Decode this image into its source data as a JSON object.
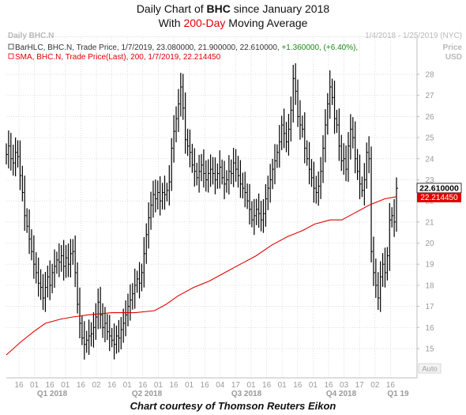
{
  "title": {
    "prefix": "Daily Chart of ",
    "ticker": "BHC",
    "suffix": " since January 2018",
    "line2_prefix": "With ",
    "sma_label": "200-Day",
    "line2_suffix": " Moving Average"
  },
  "panel": {
    "name": "Daily BHC.N",
    "date_range": "1/4/2018 - 1/25/2019 (NYC)",
    "price_label": "Price",
    "currency": "USD",
    "auto_label": "Auto"
  },
  "legend": {
    "bar_text": "BarHLC, BHC.N, Trade Price, 1/7/2019, 23.080000, 21.900000, 22.610000, ",
    "bar_change": "+1.360000, (+6.40%),",
    "sma_text": "SMA, BHC.N, Trade Price(Last),  200,  1/7/2019, 22.214450"
  },
  "colors": {
    "bars": "#000000",
    "sma": "#e00000",
    "change": "#1a8a1a",
    "grid": "#cfcfcf",
    "last_price_bg": "#ffffff",
    "sma_label_bg": "#e00000"
  },
  "footer": "Chart courtesy of Thomson Reuters Eikon",
  "chart_data": {
    "type": "line",
    "chart_kind": "OHLC daily price bars (high-low-close) with 200-day simple moving average",
    "x_tick_labels": [
      "16",
      "01",
      "16",
      "01",
      "16",
      "02",
      "16",
      "01",
      "16",
      "01",
      "16",
      "01",
      "16",
      "04",
      "17",
      "01",
      "16",
      "01",
      "16",
      "01",
      "16",
      "03",
      "17",
      "02",
      "16"
    ],
    "quarter_labels": [
      "Q1 2018",
      "Q2 2018",
      "Q3 2018",
      "Q4 2018",
      "Q1 19"
    ],
    "ylim": [
      14,
      29
    ],
    "y_ticks": [
      15,
      16,
      17,
      18,
      19,
      20,
      21,
      22,
      23,
      24,
      25,
      26,
      27,
      28
    ],
    "last_price": "22.610000",
    "sma_last": "22.214450",
    "close_series": [
      24.2,
      24.6,
      24.0,
      23.8,
      24.3,
      24.1,
      23.2,
      22.4,
      21.3,
      20.8,
      20.2,
      19.6,
      19.0,
      18.6,
      18.1,
      17.9,
      17.4,
      17.9,
      18.4,
      18.0,
      18.6,
      18.9,
      19.2,
      19.1,
      19.4,
      18.9,
      19.3,
      19.0,
      19.5,
      19.6,
      18.6,
      17.1,
      16.2,
      15.5,
      15.2,
      15.4,
      15.6,
      15.7,
      16.0,
      16.5,
      17.2,
      16.6,
      16.0,
      16.2,
      15.8,
      15.6,
      15.4,
      15.2,
      15.6,
      15.5,
      15.9,
      16.2,
      16.6,
      17.0,
      17.3,
      17.6,
      18.0,
      18.3,
      18.1,
      18.6,
      19.5,
      20.4,
      21.2,
      21.8,
      22.3,
      22.1,
      22.4,
      22.0,
      22.4,
      22.3,
      22.5,
      22.9,
      24.5,
      25.3,
      25.9,
      26.6,
      27.4,
      26.4,
      24.9,
      24.6,
      24.3,
      23.7,
      23.4,
      23.1,
      23.4,
      23.7,
      23.3,
      23.0,
      23.3,
      23.5,
      23.3,
      23.0,
      23.3,
      23.6,
      23.1,
      22.8,
      23.0,
      23.4,
      23.3,
      23.8,
      23.5,
      23.2,
      22.8,
      22.6,
      22.4,
      22.0,
      21.6,
      21.1,
      21.3,
      21.6,
      21.4,
      21.1,
      21.4,
      22.1,
      22.6,
      23.0,
      23.5,
      23.9,
      24.3,
      24.8,
      25.6,
      25.2,
      24.8,
      25.4,
      26.3,
      27.8,
      27.2,
      26.0,
      25.6,
      25.4,
      24.5,
      24.0,
      23.5,
      23.1,
      22.6,
      22.4,
      22.7,
      23.4,
      24.5,
      25.6,
      26.6,
      27.4,
      26.9,
      25.9,
      25.6,
      24.6,
      23.9,
      24.0,
      23.5,
      24.6,
      25.4,
      25.0,
      24.0,
      23.4,
      22.8,
      22.5,
      23.0,
      24.3,
      24.0,
      19.6,
      18.6,
      18.0,
      17.4,
      18.4,
      19.0,
      18.6,
      19.4,
      21.1,
      21.3,
      21.0,
      22.6
    ],
    "sma_series": [
      [
        0,
        14.7
      ],
      [
        18,
        15.3
      ],
      [
        35,
        15.8
      ],
      [
        50,
        16.2
      ],
      [
        70,
        16.4
      ],
      [
        85,
        16.5
      ],
      [
        105,
        16.6
      ],
      [
        135,
        16.7
      ],
      [
        165,
        16.7
      ],
      [
        190,
        16.8
      ],
      [
        205,
        17.1
      ],
      [
        220,
        17.5
      ],
      [
        240,
        17.9
      ],
      [
        260,
        18.2
      ],
      [
        280,
        18.6
      ],
      [
        300,
        19.0
      ],
      [
        320,
        19.4
      ],
      [
        340,
        19.9
      ],
      [
        360,
        20.3
      ],
      [
        380,
        20.6
      ],
      [
        395,
        20.9
      ],
      [
        415,
        21.1
      ],
      [
        430,
        21.1
      ],
      [
        445,
        21.4
      ],
      [
        465,
        21.8
      ],
      [
        485,
        22.1
      ],
      [
        500,
        22.2
      ]
    ]
  }
}
